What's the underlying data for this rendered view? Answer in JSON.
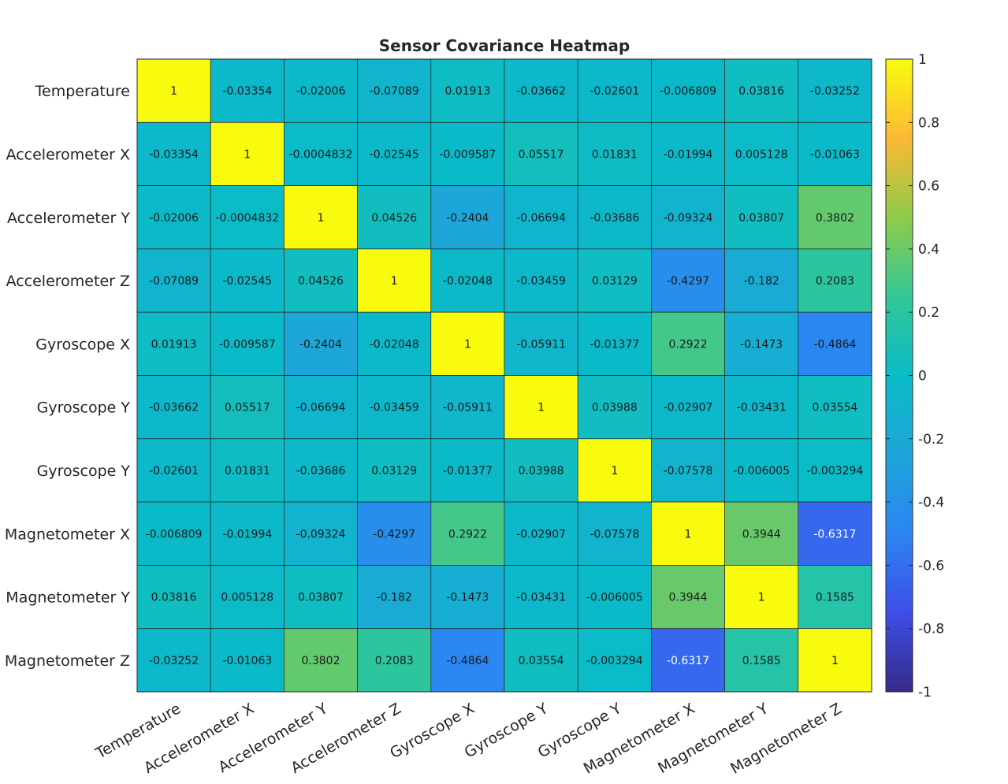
{
  "chart_data": {
    "type": "heatmap",
    "title": "Sensor Covariance Heatmap",
    "xlabel": "",
    "ylabel": "",
    "row_labels": [
      "Temperature",
      "Accelerometer X",
      "Accelerometer Y",
      "Accelerometer Z",
      "Gyroscope X",
      "Gyroscope Y",
      "Gyroscope Y",
      "Magnetometer X",
      "Magnetometer Y",
      "Magnetometer Z"
    ],
    "col_labels": [
      "Temperature",
      "Accelerometer X",
      "Accelerometer Y",
      "Accelerometer Z",
      "Gyroscope X",
      "Gyroscope Y",
      "Gyroscope Y",
      "Magnetometer X",
      "Magnetometer Y",
      "Magnetometer Z"
    ],
    "values": [
      [
        "1",
        "-0.03354",
        "-0.02006",
        "-0.07089",
        "0.01913",
        "-0.03662",
        "-0.02601",
        "-0.006809",
        "0.03816",
        "-0.03252"
      ],
      [
        "-0.03354",
        "1",
        "-0.0004832",
        "-0.02545",
        "-0.009587",
        "0.05517",
        "0.01831",
        "-0.01994",
        "0.005128",
        "-0.01063"
      ],
      [
        "-0.02006",
        "-0.0004832",
        "1",
        "0.04526",
        "-0.2404",
        "-0.06694",
        "-0.03686",
        "-0.09324",
        "0.03807",
        "0.3802"
      ],
      [
        "-0.07089",
        "-0.02545",
        "0.04526",
        "1",
        "-0.02048",
        "-0.03459",
        "0.03129",
        "-0.4297",
        "-0.182",
        "0.2083"
      ],
      [
        "0.01913",
        "-0.009587",
        "-0.2404",
        "-0.02048",
        "1",
        "-0.05911",
        "-0.01377",
        "0.2922",
        "-0.1473",
        "-0.4864"
      ],
      [
        "-0.03662",
        "0.05517",
        "-0.06694",
        "-0.03459",
        "-0.05911",
        "1",
        "0.03988",
        "-0.02907",
        "-0.03431",
        "0.03554"
      ],
      [
        "-0.02601",
        "0.01831",
        "-0.03686",
        "0.03129",
        "-0.01377",
        "0.03988",
        "1",
        "-0.07578",
        "-0.006005",
        "-0.003294"
      ],
      [
        "-0.006809",
        "-0.01994",
        "-0.09324",
        "-0.4297",
        "0.2922",
        "-0.02907",
        "-0.07578",
        "1",
        "0.3944",
        "-0.6317"
      ],
      [
        "0.03816",
        "0.005128",
        "0.03807",
        "-0.182",
        "-0.1473",
        "-0.03431",
        "-0.006005",
        "0.3944",
        "1",
        "0.1585"
      ],
      [
        "-0.03252",
        "-0.01063",
        "0.3802",
        "0.2083",
        "-0.4864",
        "0.03554",
        "-0.003294",
        "-0.6317",
        "0.1585",
        "1"
      ]
    ],
    "colorbar": {
      "range": [
        -1,
        1
      ],
      "ticks": [
        "1",
        "0.8",
        "0.6",
        "0.4",
        "0.2",
        "0",
        "-0.2",
        "-0.4",
        "-0.6",
        "-0.8",
        "-1"
      ]
    },
    "colormap": "parula",
    "grid": true,
    "legend": "colorbar-right"
  }
}
